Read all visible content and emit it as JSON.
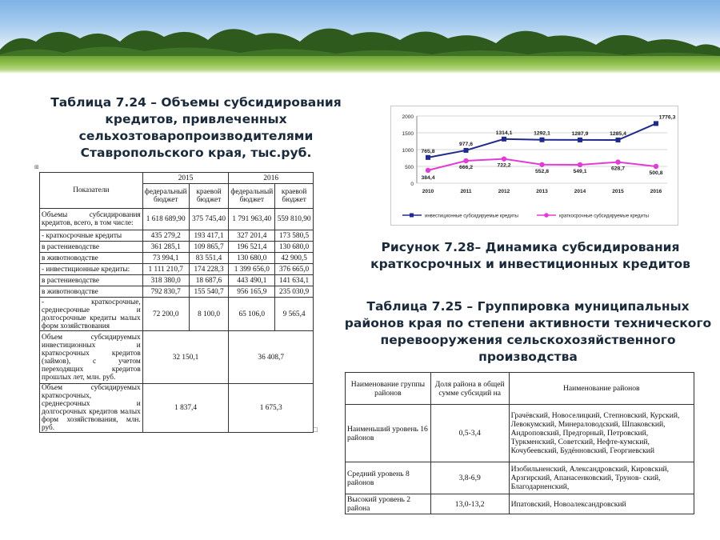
{
  "table1": {
    "title": "Таблица 7.24 – Объемы субсидирования кредитов, привлеченных сельхозтоваропроизводителями Ставропольского края, тыс.руб.",
    "col_indicators": "Показатели",
    "year1": "2015",
    "year2": "2016",
    "fed": "федеральный бюджет",
    "kr": "краевой бюджет",
    "rows": [
      {
        "label": "Объемы субсидирования кредитов, всего, в том числе:",
        "v": [
          "1 618 689,90",
          "375 745,40",
          "1 791 963,40",
          "559 810,90"
        ]
      },
      {
        "label": "- краткосрочные кредиты",
        "v": [
          "435 279,2",
          "193 417,1",
          "327 201,4",
          "173 580,5"
        ]
      },
      {
        "label": "в растениеводстве",
        "v": [
          "361 285,1",
          "109 865,7",
          "196 521,4",
          "130 680,0"
        ]
      },
      {
        "label": "в животноводстве",
        "v": [
          "73 994,1",
          "83 551,4",
          "130 680,0",
          "42 900,5"
        ]
      },
      {
        "label": "- инвестиционные кредиты:",
        "v": [
          "1 111 210,7",
          "174 228,3",
          "1 399 656,0",
          "376 665,0"
        ]
      },
      {
        "label": "в растениеводстве",
        "v": [
          "318 380,0",
          "18 687,6",
          "443 490,1",
          "141 634,1"
        ]
      },
      {
        "label": "в животноводстве",
        "v": [
          "792 830,7",
          "155 540,7",
          "956 165,9",
          "235 030,9"
        ]
      },
      {
        "label": "- краткосрочные, среднесрочные и долгосрочные кредиты малых форм хозяйствования",
        "v": [
          "72 200,0",
          "8 100,0",
          "65 106,0",
          "9 565,4"
        ]
      }
    ],
    "merged": [
      {
        "label": "Объем субсидируемых инвестиционных и краткосрочных кредитов (займов), с учетом переходящих кредитов прошлых лет, млн. руб.",
        "v2015": "32 150,1",
        "v2016": "36 408,7"
      },
      {
        "label": "Объем субсидируемых краткосрочных, среднесрочных и долгосрочных кредитов малых форм хозяйствования, млн. руб.",
        "v2015": "1 837,4",
        "v2016": "1 675,3"
      }
    ]
  },
  "figure": {
    "caption": "Рисунок 7.28– Динамика субсидирования краткосрочных и инвестиционных кредитов"
  },
  "chart_data": {
    "type": "line",
    "x": [
      "2010",
      "2011",
      "2012",
      "2013",
      "2014",
      "2015",
      "2016"
    ],
    "ylim": [
      0,
      2000
    ],
    "yticks": [
      "0",
      "500",
      "1000",
      "1500",
      "2000"
    ],
    "series": [
      {
        "name": "инвестиционные субсидируемые кредиты",
        "values": [
          765.8,
          977.6,
          1314.1,
          1292.1,
          1287.9,
          1285.4,
          1776.3
        ],
        "labels": [
          "765,8",
          "977,6",
          "1314,1",
          "1292,1",
          "1287,9",
          "1285,4",
          "1776,3"
        ],
        "color": "#1f2a8c"
      },
      {
        "name": "краткосрочные субсидируемые кредиты",
        "values": [
          384.4,
          666.2,
          722.2,
          552.8,
          549.1,
          628.7,
          500.8
        ],
        "labels": [
          "384,4",
          "666,2",
          "722,2",
          "552,8",
          "549,1",
          "628,7",
          "500,8"
        ],
        "color": "#e23cd6"
      }
    ],
    "grid": true,
    "legend": "bottom"
  },
  "table2": {
    "title": "Таблица 7.25 – Группировка муниципальных районов края по степени активности технического перевооружения сельскохозяйственного производства",
    "h1": "Наименование группы районов",
    "h2": "Доля района в общей сумме субсидий на",
    "h3": "Наименование районов",
    "rows": [
      {
        "group": "Наименьший уровень 16 районов",
        "share": "0,5-3,4",
        "districts": "Грачёвский, Новоселицкий, Степновский, Курский, Левокумский, Минераловодский, Шпаковский, Андроповский, Предгорный, Петровский, Туркменский, Советский, Нефте-кумский, Кочубеевский, Будённовский, Георгиевский"
      },
      {
        "group": "Средний уровень 8 районов",
        "share": "3,8-6,9",
        "districts": "Изобильненский, Александровский, Кировский, Арзгирский, Апанасенковский, Трунов- ский, Благодарненский,"
      },
      {
        "group": "Высокий уровень 2 района",
        "share": "13,0-13,2",
        "districts": "Ипатовский, Новоалександровский"
      }
    ]
  }
}
